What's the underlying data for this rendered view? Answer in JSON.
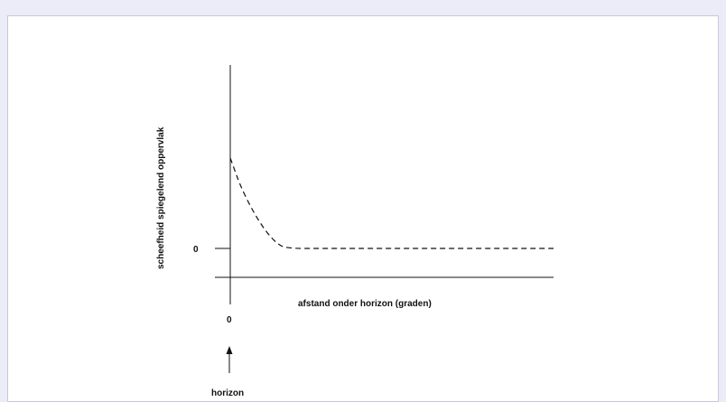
{
  "chart_data": {
    "type": "line",
    "title": "",
    "xlabel": "afstand onder horizon (graden)",
    "ylabel": "scheefheid spiegelend oppervlak",
    "x_tick_labels": [
      "0"
    ],
    "y_tick_labels": [
      "0"
    ],
    "annotation": "horizon",
    "annotation_icon": "arrow-up-icon",
    "series": [
      {
        "style": "dashed",
        "x": [
          0,
          0.5,
          1,
          2,
          3,
          4,
          5,
          6,
          10,
          20,
          35
        ],
        "y": [
          1.0,
          0.86,
          0.72,
          0.5,
          0.32,
          0.17,
          0.06,
          0.0,
          0.0,
          0.0,
          0.0
        ]
      }
    ],
    "xlim": [
      0,
      35
    ],
    "ylim": [
      -0.3,
      1.0
    ],
    "grid": false,
    "legend": "none",
    "colors": {
      "line": "#111111",
      "background": "#ecebf8",
      "panel": "#ffffff"
    }
  }
}
